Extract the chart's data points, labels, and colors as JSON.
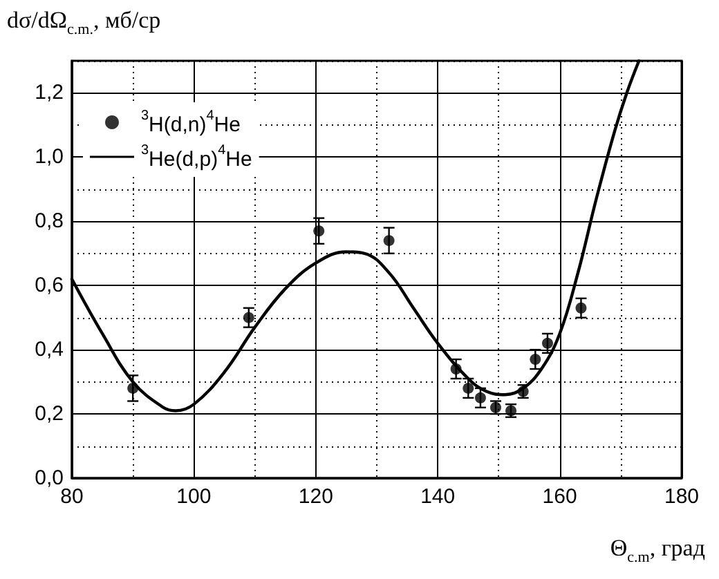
{
  "chart_data": {
    "type": "scatter",
    "xlabel": "Θ$_{c.m}$, град",
    "ylabel": "dσ/dΩ$_{c.m.}$, мб/ср",
    "xlim": [
      80,
      180
    ],
    "xticks": [
      80,
      100,
      120,
      140,
      160,
      180
    ],
    "ylim": [
      0,
      1.3
    ],
    "yticks": [
      {
        "value": 0,
        "label": "0,0"
      },
      {
        "value": 0.2,
        "label": "0,2"
      },
      {
        "value": 0.4,
        "label": "0,4"
      },
      {
        "value": 0.6,
        "label": "0,6"
      },
      {
        "value": 0.8,
        "label": "0,8"
      },
      {
        "value": 1.0,
        "label": "1,0"
      },
      {
        "value": 1.2,
        "label": "1,2"
      }
    ],
    "grid": true,
    "legend": "top left",
    "marker": "circle",
    "series": [
      {
        "name": "$^{3}$H(d,n)$^{4}$He",
        "color": "#000000",
        "x": [
          90,
          109,
          120.5,
          132,
          143,
          145,
          147,
          149.5,
          152,
          154,
          156,
          158,
          163.5
        ],
        "values": [
          0.28,
          0.5,
          0.77,
          0.74,
          0.34,
          0.28,
          0.25,
          0.22,
          0.21,
          0.27,
          0.37,
          0.42,
          0.53
        ],
        "errors": [
          0.04,
          0.03,
          0.04,
          0.04,
          0.03,
          0.03,
          0.03,
          0.02,
          0.02,
          0.02,
          0.03,
          0.03,
          0.03
        ]
      },
      {
        "name": "$^{3}$He(d,p)$^{4}$He",
        "type": "line",
        "color": "#000000",
        "line_style": "solid",
        "marker": "none",
        "x": [
          80,
          85,
          90,
          95,
          97,
          100,
          105,
          110,
          115,
          120,
          125,
          128,
          132,
          136,
          140,
          145,
          148,
          151,
          154,
          157,
          160,
          163,
          166,
          169,
          171,
          173
        ],
        "values": [
          0.62,
          0.45,
          0.3,
          0.22,
          0.21,
          0.23,
          0.33,
          0.47,
          0.59,
          0.67,
          0.705,
          0.7,
          0.64,
          0.53,
          0.42,
          0.31,
          0.27,
          0.26,
          0.28,
          0.34,
          0.45,
          0.64,
          0.87,
          1.08,
          1.2,
          1.3
        ]
      }
    ]
  }
}
